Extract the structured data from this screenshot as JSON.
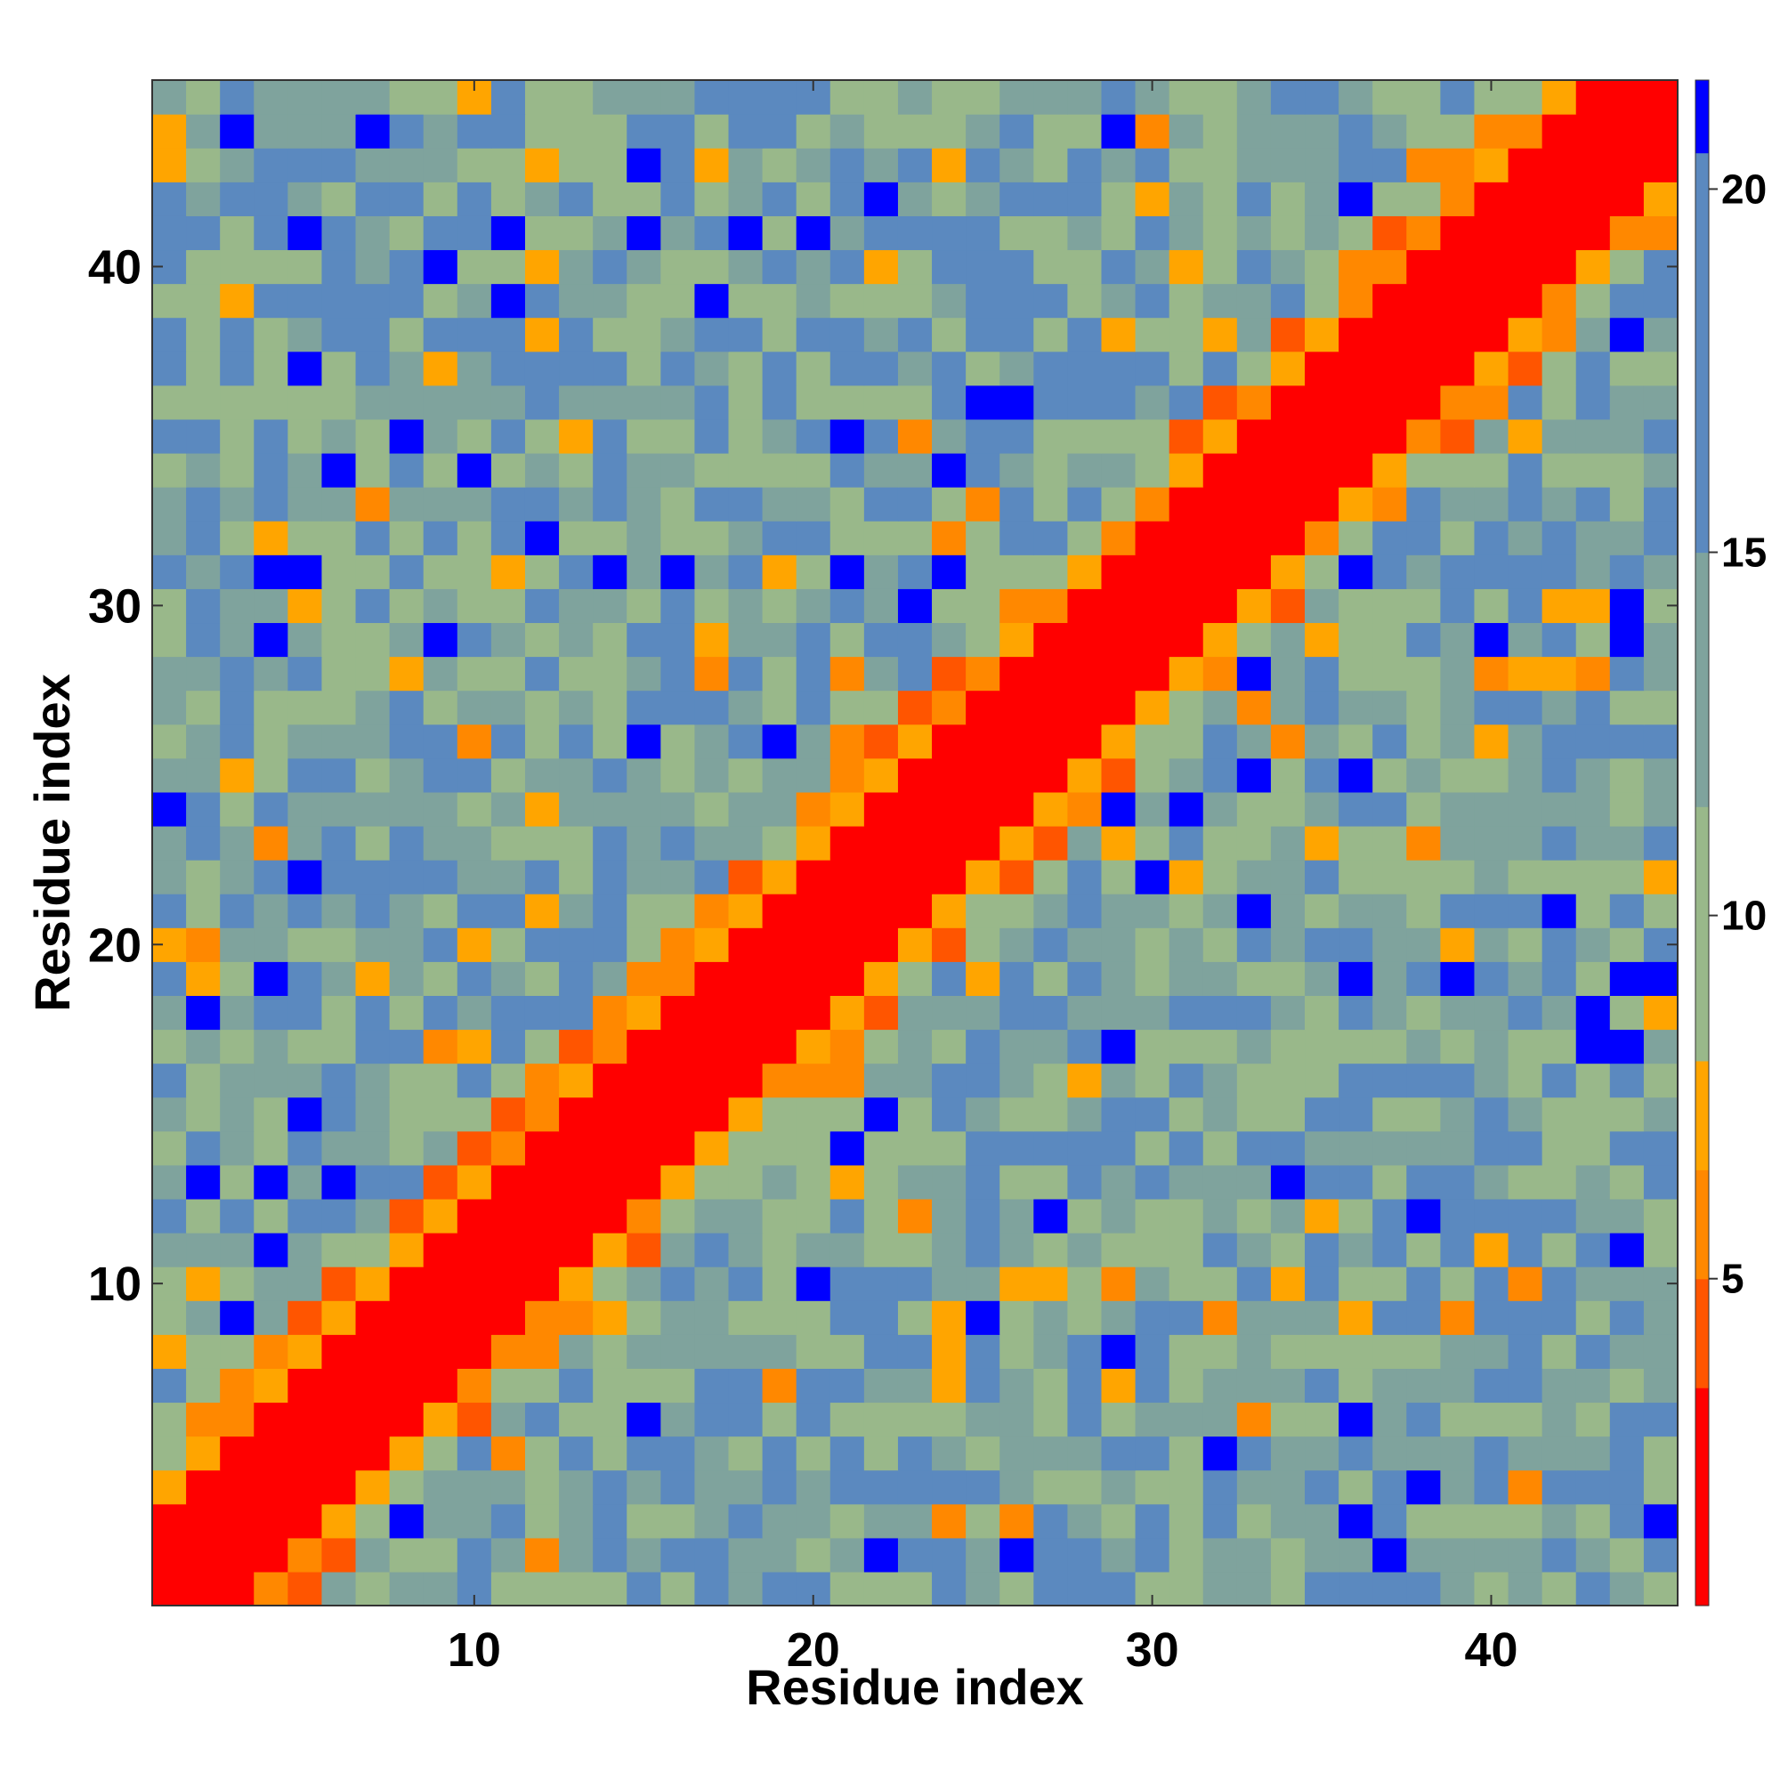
{
  "chart_data": {
    "type": "heatmap",
    "title": "",
    "xlabel": "Residue index",
    "ylabel": "Residue index",
    "n": 45,
    "xlim": [
      0.5,
      45.5
    ],
    "ylim": [
      0.5,
      45.5
    ],
    "x_ticks": [
      10,
      20,
      30,
      40
    ],
    "y_ticks": [
      10,
      20,
      30,
      40
    ],
    "colorbar": {
      "vmin": 0.5,
      "vmax": 21.5,
      "ticks": [
        5,
        10,
        15,
        20
      ],
      "tick_labels": [
        "5",
        "10",
        "15",
        "20"
      ],
      "bands": [
        {
          "from": 0.5,
          "to": 1.5,
          "color": "#ff0000"
        },
        {
          "from": 1.5,
          "to": 3.5,
          "color": "#ff0000"
        },
        {
          "from": 3.5,
          "to": 5.0,
          "color": "#ff5500"
        },
        {
          "from": 5.0,
          "to": 6.5,
          "color": "#ff8800"
        },
        {
          "from": 6.5,
          "to": 8.0,
          "color": "#ffa500"
        },
        {
          "from": 8.0,
          "to": 11.5,
          "color": "#99b88a"
        },
        {
          "from": 11.5,
          "to": 15.0,
          "color": "#7fa39d"
        },
        {
          "from": 15.0,
          "to": 20.5,
          "color": "#5b89bf"
        },
        {
          "from": 20.5,
          "to": 21.5,
          "color": "#0000ff"
        }
      ]
    },
    "value_colors": {
      "diagonal": "#ff0000",
      "near": "#ff5500",
      "mid": "#ff8800",
      "far": "#ffa500",
      "green": "#99b88a",
      "teal": "#7fa39d",
      "blue": "#5b89bf",
      "dark_blue": "#0000ff"
    },
    "grid": false,
    "legend": "colorbar-right"
  }
}
